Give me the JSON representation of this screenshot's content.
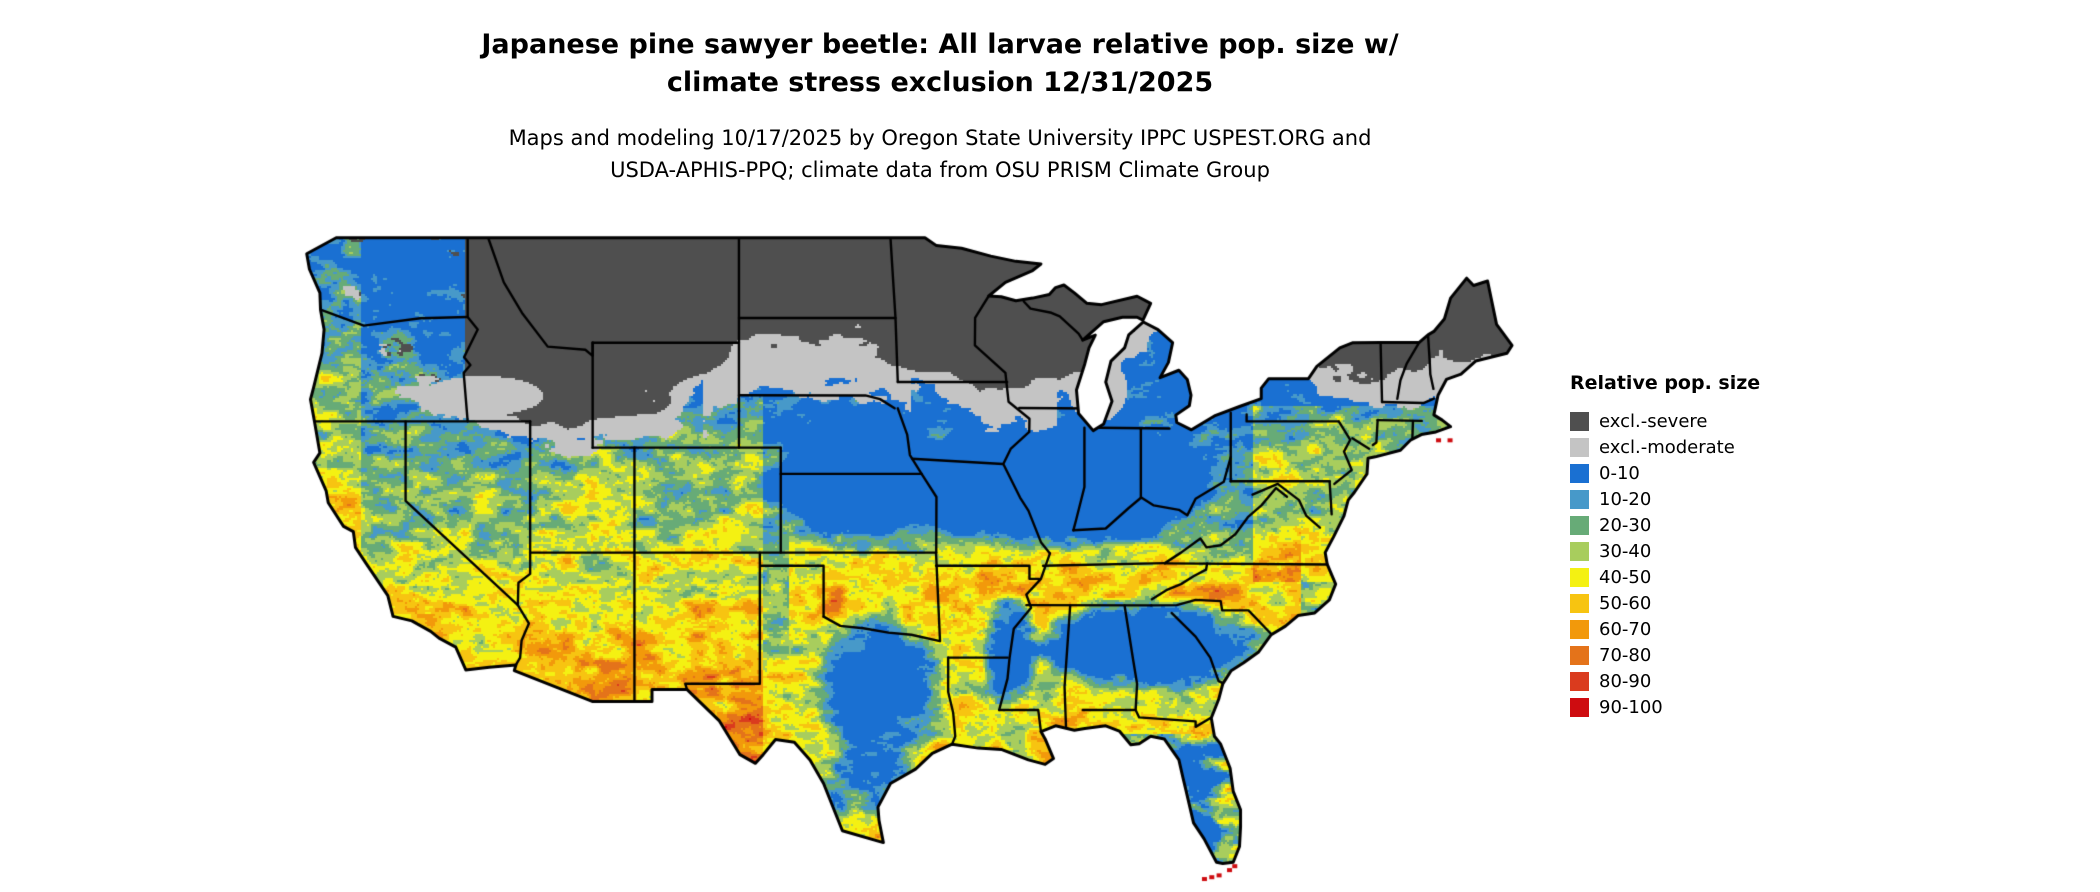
{
  "title": {
    "line1": "Japanese pine sawyer beetle: All larvae relative pop. size w/",
    "line2": "climate stress exclusion 12/31/2025"
  },
  "subtitle": {
    "line1": "Maps and modeling 10/17/2025 by Oregon State University IPPC USPEST.ORG and",
    "line2": "USDA-APHIS-PPQ; climate data from OSU PRISM Climate Group"
  },
  "legend": {
    "title": "Relative pop. size",
    "entries": [
      {
        "label": "excl.-severe",
        "color": "#4f4f4f"
      },
      {
        "label": "excl.-moderate",
        "color": "#c4c4c4"
      },
      {
        "label": "0-10",
        "color": "#1a70d2"
      },
      {
        "label": "10-20",
        "color": "#4799c9"
      },
      {
        "label": "20-30",
        "color": "#67ab77"
      },
      {
        "label": "30-40",
        "color": "#a8cd5d"
      },
      {
        "label": "40-50",
        "color": "#f4f112"
      },
      {
        "label": "50-60",
        "color": "#f7c411"
      },
      {
        "label": "60-70",
        "color": "#f2990b"
      },
      {
        "label": "70-80",
        "color": "#e4731a"
      },
      {
        "label": "80-90",
        "color": "#da3b1e"
      },
      {
        "label": "90-100",
        "color": "#ce0c10"
      }
    ]
  }
}
